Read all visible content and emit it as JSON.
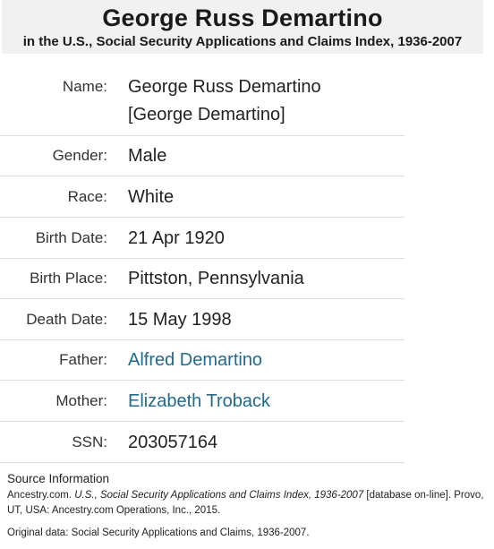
{
  "header": {
    "title": "George Russ Demartino",
    "subtitle": "in the U.S., Social Security Applications and Claims Index, 1936-2007"
  },
  "record": {
    "name": {
      "label": "Name:",
      "value": "George Russ Demartino",
      "alt": "[George Demartino]"
    },
    "gender": {
      "label": "Gender:",
      "value": "Male"
    },
    "race": {
      "label": "Race:",
      "value": "White"
    },
    "birth_date": {
      "label": "Birth Date:",
      "value": "21 Apr 1920"
    },
    "birth_place": {
      "label": "Birth Place:",
      "value": "Pittston, Pennsylvania"
    },
    "death_date": {
      "label": "Death Date:",
      "value": "15 May 1998"
    },
    "father": {
      "label": "Father:",
      "value": "Alfred Demartino"
    },
    "mother": {
      "label": "Mother:",
      "value": "Elizabeth Troback"
    },
    "ssn": {
      "label": "SSN:",
      "value": "203057164"
    }
  },
  "source": {
    "heading": "Source Information",
    "citation_prefix": "Ancestry.com. ",
    "citation_title": "U.S., Social Security Applications and Claims Index, 1936-2007",
    "citation_suffix": " [database on-line]. Provo, UT, USA: Ancestry.com Operations, Inc., 2015.",
    "original": "Original data: Social Security Applications and Claims, 1936-2007."
  },
  "colors": {
    "link": "#1f6a8e",
    "header_bg": "#f1f1f1",
    "divider": "#dddddd"
  }
}
